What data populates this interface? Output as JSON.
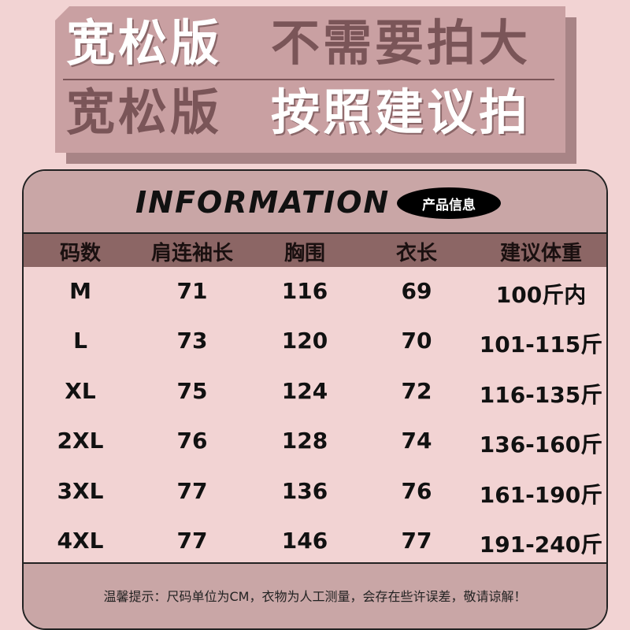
{
  "banner": {
    "line1_left": "宽松版",
    "line1_right": "不需要拍大",
    "line2_left": "宽松版",
    "line2_right": "按照建议拍"
  },
  "table": {
    "title": "INFORMATION",
    "badge": "产品信息",
    "headers": [
      "码数",
      "肩连袖长",
      "胸围",
      "衣长",
      "建议体重"
    ],
    "rows": [
      [
        "M",
        "71",
        "116",
        "69",
        "100斤内"
      ],
      [
        "L",
        "73",
        "120",
        "70",
        "101-115斤"
      ],
      [
        "XL",
        "75",
        "124",
        "72",
        "116-135斤"
      ],
      [
        "2XL",
        "76",
        "128",
        "74",
        "136-160斤"
      ],
      [
        "3XL",
        "77",
        "136",
        "76",
        "161-190斤"
      ],
      [
        "4XL",
        "77",
        "146",
        "77",
        "191-240斤"
      ]
    ],
    "note": "温馨提示：尺码单位为CM，衣物为人工测量，会存在些许误差，敬请谅解！"
  },
  "colors": {
    "background": "#f2d3d3",
    "banner": "#c9a0a2",
    "banner_text_dark": "#7a5558",
    "header_row": "#8c6665",
    "title_band": "#c9a6a6"
  }
}
